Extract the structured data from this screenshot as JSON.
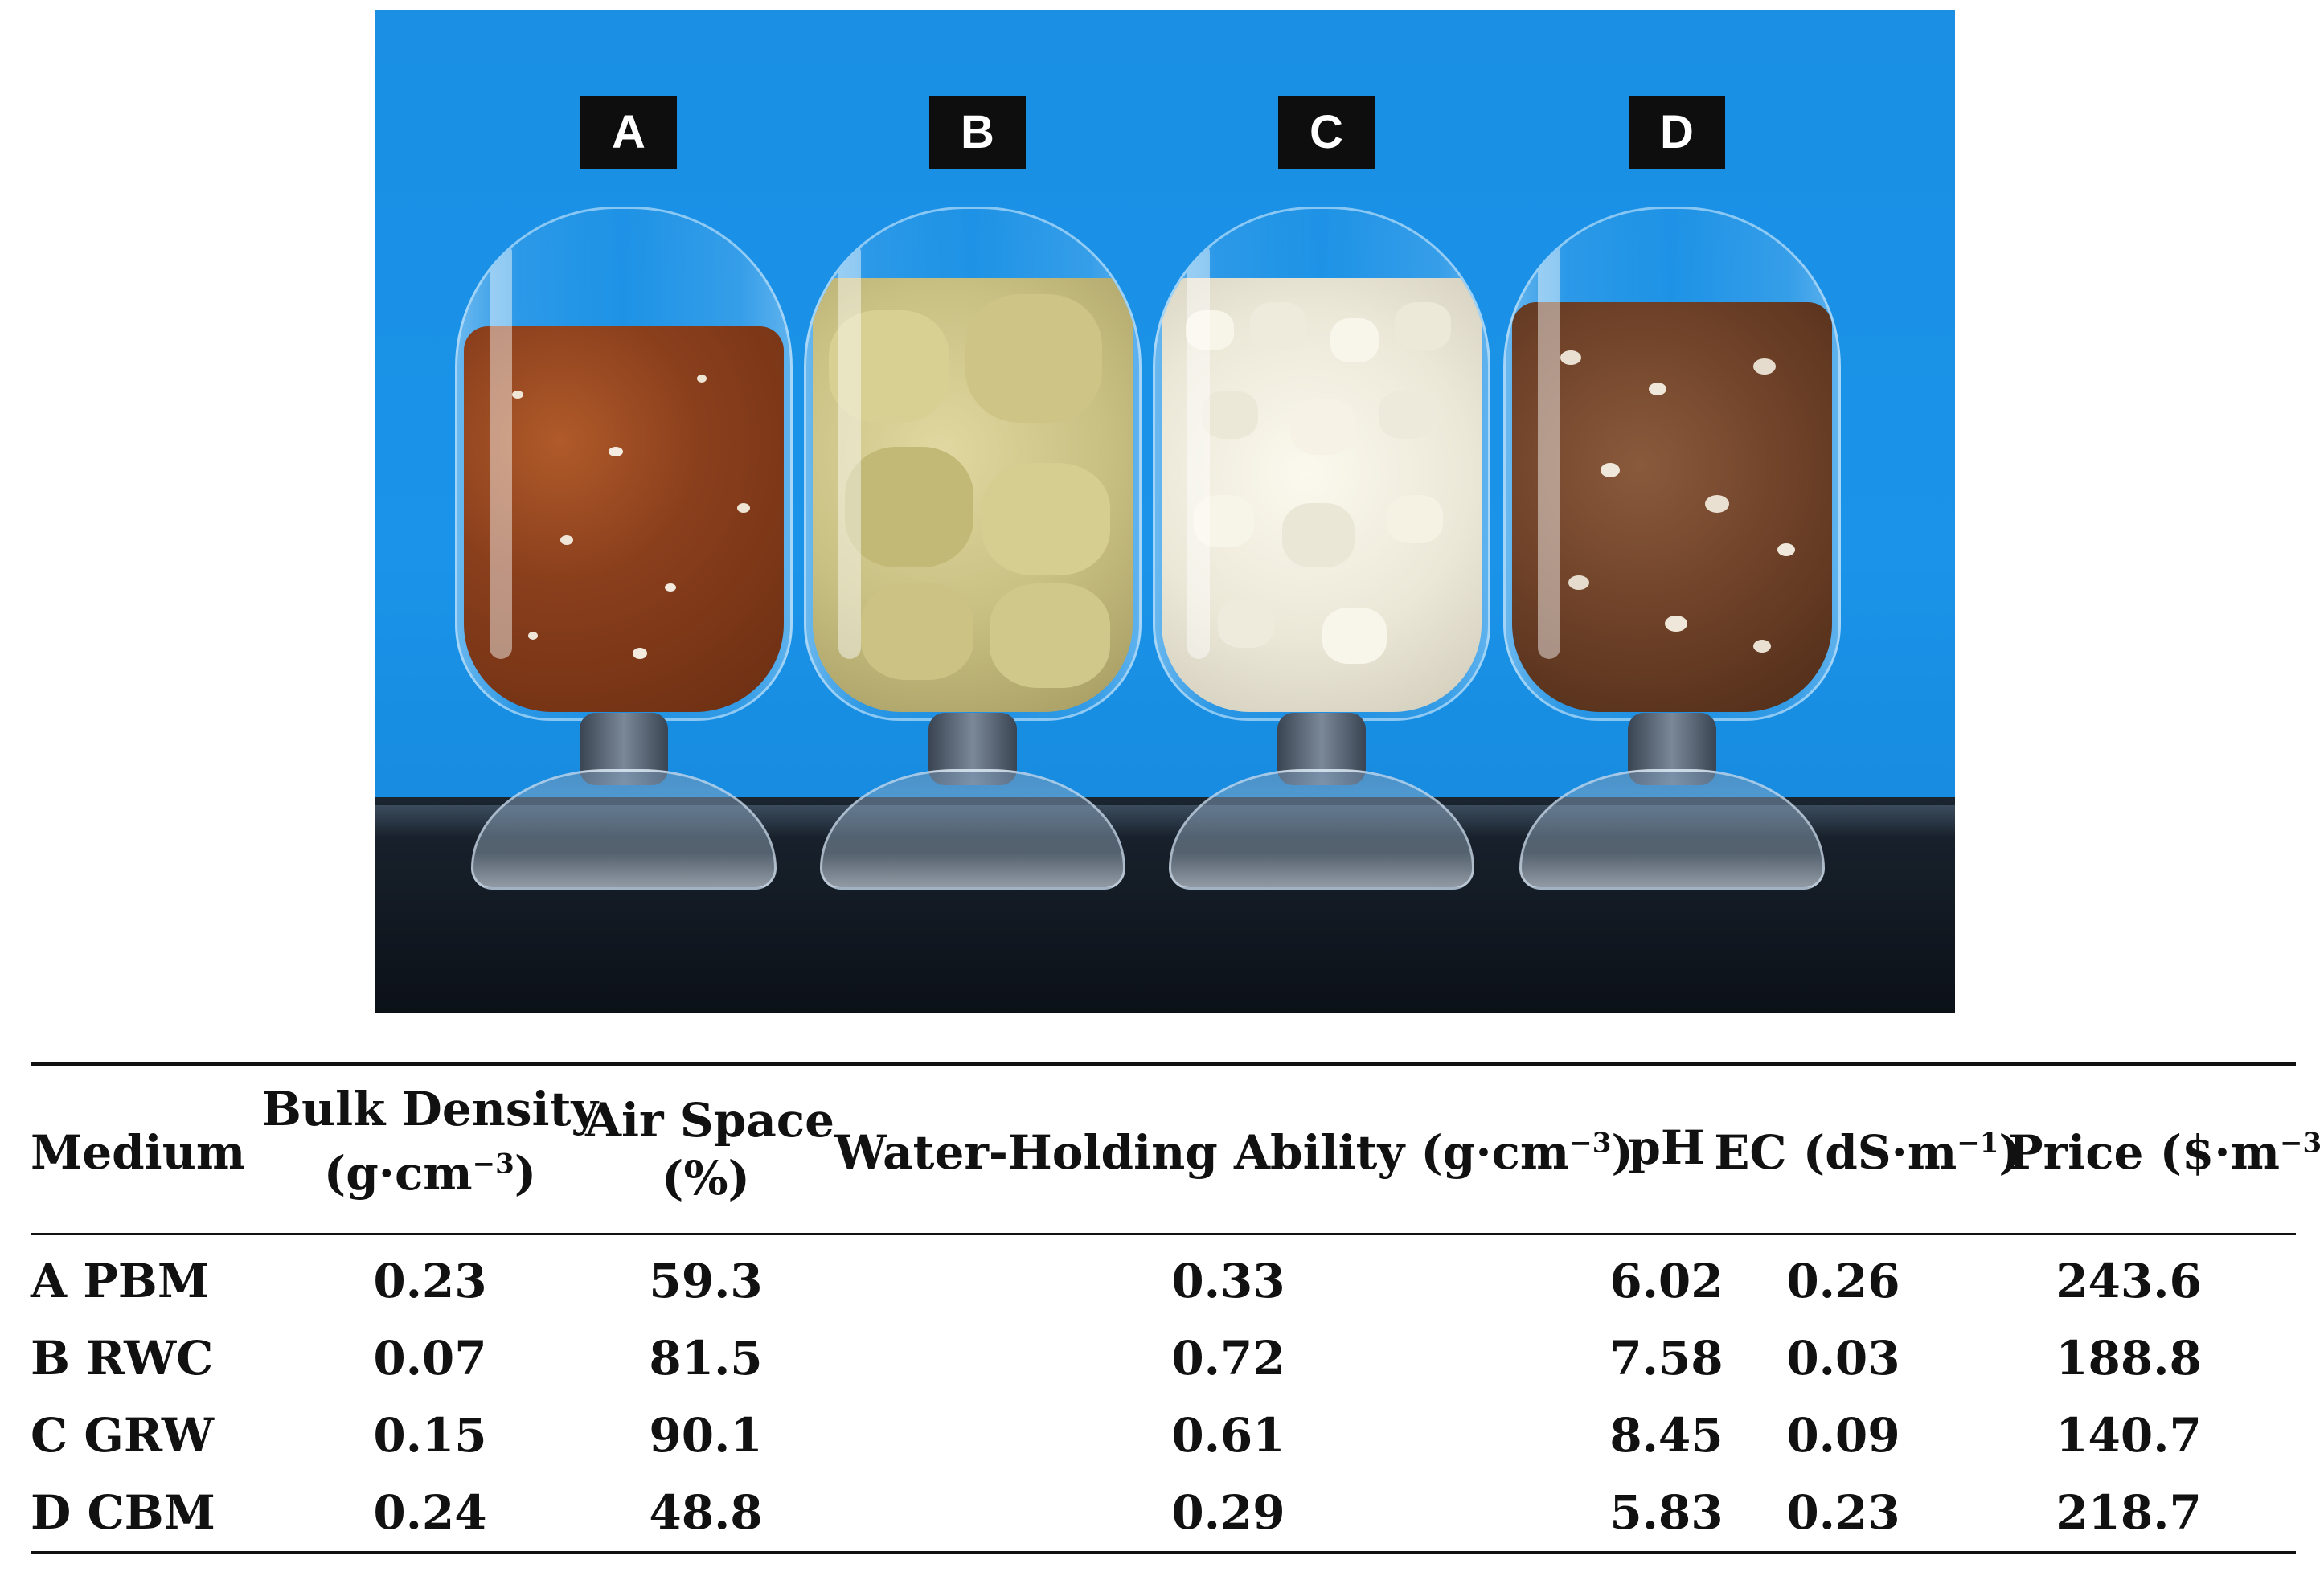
{
  "photo": {
    "labels": [
      "A",
      "B",
      "C",
      "D"
    ]
  },
  "table": {
    "headers": {
      "medium": "Medium",
      "bulk_density_line1": "Bulk Density",
      "bulk_density_line2": "(g·cm",
      "bulk_density_exp": "−3",
      "bulk_density_close": ")",
      "air_space_line1": "Air Space",
      "air_space_line2": "(%)",
      "water_holding": "Water-Holding Ability (g·cm",
      "water_holding_exp": "−3",
      "water_holding_close": ")",
      "ph": "pH",
      "ec": "EC (dS·m",
      "ec_exp": "−1",
      "ec_close": ")",
      "price": "Price ($·m",
      "price_exp": "−3",
      "price_close": ")"
    },
    "rows": [
      {
        "medium": "A  PBM",
        "bulk_density": "0.23",
        "air_space": "59.3",
        "water_holding": "0.33",
        "ph": "6.02",
        "ec": "0.26",
        "price": "243.6"
      },
      {
        "medium": "B  RWC",
        "bulk_density": "0.07",
        "air_space": "81.5",
        "water_holding": "0.72",
        "ph": "7.58",
        "ec": "0.03",
        "price": "188.8"
      },
      {
        "medium": "C  GRW",
        "bulk_density": "0.15",
        "air_space": "90.1",
        "water_holding": "0.61",
        "ph": "8.45",
        "ec": "0.09",
        "price": "140.7"
      },
      {
        "medium": "D  CBM",
        "bulk_density": "0.24",
        "air_space": "48.8",
        "water_holding": "0.29",
        "ph": "5.83",
        "ec": "0.23",
        "price": "218.7"
      }
    ]
  }
}
